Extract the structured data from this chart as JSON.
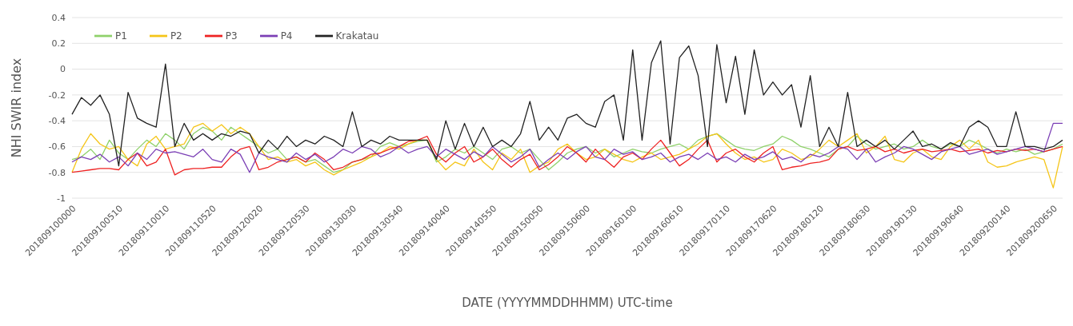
{
  "chart_data": {
    "type": "line",
    "xlabel": "DATE (YYYYMMDDHHMM) UTC-time",
    "ylabel": "NHI SWIR index",
    "categories": [
      "201809100000",
      null,
      null,
      null,
      null,
      "201809100510",
      null,
      null,
      null,
      null,
      "201809110010",
      null,
      null,
      null,
      null,
      "201809110520",
      null,
      null,
      null,
      null,
      "201809120020",
      null,
      null,
      null,
      null,
      "201809120530",
      null,
      null,
      null,
      null,
      "201809130030",
      null,
      null,
      null,
      null,
      "201809130540",
      null,
      null,
      null,
      null,
      "201809140040",
      null,
      null,
      null,
      null,
      "201809140550",
      null,
      null,
      null,
      null,
      "201809150050",
      null,
      null,
      null,
      null,
      "201809150600",
      null,
      null,
      null,
      null,
      "201809160100",
      null,
      null,
      null,
      null,
      "201809160610",
      null,
      null,
      null,
      null,
      "201809170110",
      null,
      null,
      null,
      null,
      "201809170620",
      null,
      null,
      null,
      null,
      "201809180120",
      null,
      null,
      null,
      null,
      "201809180630",
      null,
      null,
      null,
      null,
      "201809190130",
      null,
      null,
      null,
      null,
      "201809190640",
      null,
      null,
      null,
      null,
      "201809200140",
      null,
      null,
      null,
      null,
      "201809200650",
      null
    ],
    "series": [
      {
        "name": "P1",
        "color": "#8fd16a",
        "values": [
          -0.7,
          -0.68,
          -0.62,
          -0.7,
          -0.55,
          -0.65,
          -0.7,
          -0.62,
          -0.55,
          -0.6,
          -0.5,
          -0.55,
          -0.62,
          -0.5,
          -0.45,
          -0.48,
          -0.55,
          -0.45,
          -0.5,
          -0.55,
          -0.6,
          -0.65,
          -0.62,
          -0.7,
          -0.68,
          -0.72,
          -0.7,
          -0.75,
          -0.8,
          -0.78,
          -0.72,
          -0.7,
          -0.68,
          -0.6,
          -0.57,
          -0.6,
          -0.58,
          -0.56,
          -0.55,
          -0.72,
          -0.68,
          -0.62,
          -0.65,
          -0.6,
          -0.65,
          -0.7,
          -0.62,
          -0.6,
          -0.65,
          -0.62,
          -0.7,
          -0.78,
          -0.72,
          -0.65,
          -0.62,
          -0.6,
          -0.65,
          -0.62,
          -0.68,
          -0.65,
          -0.62,
          -0.64,
          -0.65,
          -0.62,
          -0.6,
          -0.58,
          -0.62,
          -0.55,
          -0.52,
          -0.5,
          -0.55,
          -0.6,
          -0.62,
          -0.63,
          -0.6,
          -0.58,
          -0.52,
          -0.55,
          -0.6,
          -0.62,
          -0.65,
          -0.68,
          -0.62,
          -0.6,
          -0.52,
          -0.58,
          -0.62,
          -0.6,
          -0.58,
          -0.62,
          -0.6,
          -0.55,
          -0.6,
          -0.62,
          -0.58,
          -0.6,
          -0.55,
          -0.58,
          -0.62,
          -0.65,
          -0.62,
          -0.64,
          -0.62,
          -0.66,
          -0.64,
          -0.62,
          -0.58
        ]
      },
      {
        "name": "P2",
        "color": "#f5c518",
        "values": [
          -0.8,
          -0.62,
          -0.5,
          -0.58,
          -0.62,
          -0.6,
          -0.7,
          -0.75,
          -0.58,
          -0.52,
          -0.62,
          -0.6,
          -0.58,
          -0.45,
          -0.42,
          -0.48,
          -0.43,
          -0.5,
          -0.45,
          -0.5,
          -0.6,
          -0.7,
          -0.68,
          -0.72,
          -0.7,
          -0.75,
          -0.72,
          -0.78,
          -0.82,
          -0.78,
          -0.75,
          -0.72,
          -0.68,
          -0.65,
          -0.6,
          -0.62,
          -0.58,
          -0.55,
          -0.55,
          -0.7,
          -0.78,
          -0.72,
          -0.75,
          -0.62,
          -0.72,
          -0.78,
          -0.65,
          -0.7,
          -0.62,
          -0.8,
          -0.75,
          -0.72,
          -0.62,
          -0.58,
          -0.65,
          -0.7,
          -0.68,
          -0.62,
          -0.66,
          -0.7,
          -0.72,
          -0.68,
          -0.65,
          -0.7,
          -0.68,
          -0.66,
          -0.62,
          -0.58,
          -0.52,
          -0.5,
          -0.58,
          -0.65,
          -0.7,
          -0.68,
          -0.72,
          -0.7,
          -0.62,
          -0.65,
          -0.7,
          -0.68,
          -0.62,
          -0.55,
          -0.6,
          -0.55,
          -0.5,
          -0.65,
          -0.6,
          -0.52,
          -0.7,
          -0.72,
          -0.65,
          -0.62,
          -0.68,
          -0.7,
          -0.6,
          -0.55,
          -0.62,
          -0.55,
          -0.72,
          -0.76,
          -0.75,
          -0.72,
          -0.7,
          -0.68,
          -0.7,
          -0.92,
          -0.6
        ]
      },
      {
        "name": "P3",
        "color": "#ee2222",
        "values": [
          -0.8,
          -0.79,
          -0.78,
          -0.77,
          -0.77,
          -0.78,
          -0.7,
          -0.65,
          -0.75,
          -0.72,
          -0.62,
          -0.82,
          -0.78,
          -0.77,
          -0.77,
          -0.76,
          -0.76,
          -0.68,
          -0.62,
          -0.6,
          -0.78,
          -0.76,
          -0.72,
          -0.7,
          -0.68,
          -0.72,
          -0.65,
          -0.7,
          -0.78,
          -0.76,
          -0.72,
          -0.7,
          -0.66,
          -0.65,
          -0.62,
          -0.6,
          -0.56,
          -0.55,
          -0.52,
          -0.66,
          -0.72,
          -0.65,
          -0.6,
          -0.72,
          -0.68,
          -0.62,
          -0.7,
          -0.76,
          -0.7,
          -0.66,
          -0.78,
          -0.74,
          -0.68,
          -0.6,
          -0.65,
          -0.72,
          -0.62,
          -0.7,
          -0.76,
          -0.68,
          -0.65,
          -0.7,
          -0.62,
          -0.55,
          -0.65,
          -0.75,
          -0.7,
          -0.62,
          -0.55,
          -0.72,
          -0.65,
          -0.62,
          -0.68,
          -0.72,
          -0.65,
          -0.6,
          -0.78,
          -0.76,
          -0.75,
          -0.73,
          -0.72,
          -0.7,
          -0.62,
          -0.6,
          -0.63,
          -0.62,
          -0.6,
          -0.64,
          -0.62,
          -0.65,
          -0.63,
          -0.62,
          -0.64,
          -0.63,
          -0.62,
          -0.64,
          -0.63,
          -0.62,
          -0.65,
          -0.63,
          -0.64,
          -0.62,
          -0.63,
          -0.62,
          -0.64,
          -0.62,
          -0.6
        ]
      },
      {
        "name": "P4",
        "color": "#7b3fb5",
        "values": [
          -0.72,
          -0.68,
          -0.7,
          -0.66,
          -0.72,
          -0.68,
          -0.75,
          -0.65,
          -0.7,
          -0.62,
          -0.65,
          -0.64,
          -0.66,
          -0.68,
          -0.62,
          -0.7,
          -0.72,
          -0.62,
          -0.66,
          -0.8,
          -0.65,
          -0.68,
          -0.7,
          -0.72,
          -0.65,
          -0.7,
          -0.66,
          -0.72,
          -0.68,
          -0.62,
          -0.65,
          -0.6,
          -0.62,
          -0.68,
          -0.65,
          -0.6,
          -0.65,
          -0.62,
          -0.6,
          -0.68,
          -0.62,
          -0.66,
          -0.7,
          -0.64,
          -0.68,
          -0.6,
          -0.66,
          -0.72,
          -0.68,
          -0.62,
          -0.76,
          -0.7,
          -0.65,
          -0.7,
          -0.64,
          -0.6,
          -0.68,
          -0.7,
          -0.62,
          -0.66,
          -0.64,
          -0.7,
          -0.68,
          -0.65,
          -0.72,
          -0.68,
          -0.66,
          -0.7,
          -0.65,
          -0.7,
          -0.68,
          -0.72,
          -0.66,
          -0.7,
          -0.68,
          -0.64,
          -0.7,
          -0.68,
          -0.72,
          -0.66,
          -0.68,
          -0.65,
          -0.6,
          -0.62,
          -0.7,
          -0.62,
          -0.72,
          -0.68,
          -0.65,
          -0.6,
          -0.62,
          -0.66,
          -0.7,
          -0.64,
          -0.62,
          -0.6,
          -0.66,
          -0.64,
          -0.62,
          -0.66,
          -0.64,
          -0.62,
          -0.6,
          -0.62,
          -0.64,
          -0.42,
          -0.42
        ]
      },
      {
        "name": "Krakatau",
        "color": "#222222",
        "values": [
          -0.35,
          -0.22,
          -0.28,
          -0.2,
          -0.35,
          -0.75,
          -0.18,
          -0.38,
          -0.42,
          -0.45,
          0.04,
          -0.6,
          -0.42,
          -0.55,
          -0.5,
          -0.55,
          -0.5,
          -0.52,
          -0.48,
          -0.5,
          -0.65,
          -0.55,
          -0.62,
          -0.52,
          -0.6,
          -0.55,
          -0.58,
          -0.52,
          -0.55,
          -0.6,
          -0.33,
          -0.6,
          -0.55,
          -0.58,
          -0.52,
          -0.55,
          -0.55,
          -0.55,
          -0.55,
          -0.7,
          -0.4,
          -0.62,
          -0.42,
          -0.6,
          -0.45,
          -0.6,
          -0.55,
          -0.6,
          -0.5,
          -0.25,
          -0.55,
          -0.45,
          -0.55,
          -0.38,
          -0.35,
          -0.42,
          -0.45,
          -0.25,
          -0.2,
          -0.55,
          0.15,
          -0.55,
          0.05,
          0.22,
          -0.58,
          0.09,
          0.18,
          -0.05,
          -0.6,
          0.19,
          -0.26,
          0.1,
          -0.35,
          0.15,
          -0.2,
          -0.1,
          -0.2,
          -0.12,
          -0.45,
          -0.05,
          -0.6,
          -0.45,
          -0.6,
          -0.18,
          -0.6,
          -0.55,
          -0.6,
          -0.55,
          -0.62,
          -0.55,
          -0.48,
          -0.6,
          -0.58,
          -0.62,
          -0.57,
          -0.6,
          -0.45,
          -0.4,
          -0.45,
          -0.6,
          -0.6,
          -0.33,
          -0.6,
          -0.6,
          -0.62,
          -0.6,
          -0.55
        ]
      }
    ],
    "ylim": [
      -1,
      0.4
    ],
    "yticks": [
      -1,
      -0.8,
      -0.6,
      -0.4,
      -0.2,
      0,
      0.2,
      0.4
    ],
    "grid": "y",
    "legend": "top left"
  }
}
